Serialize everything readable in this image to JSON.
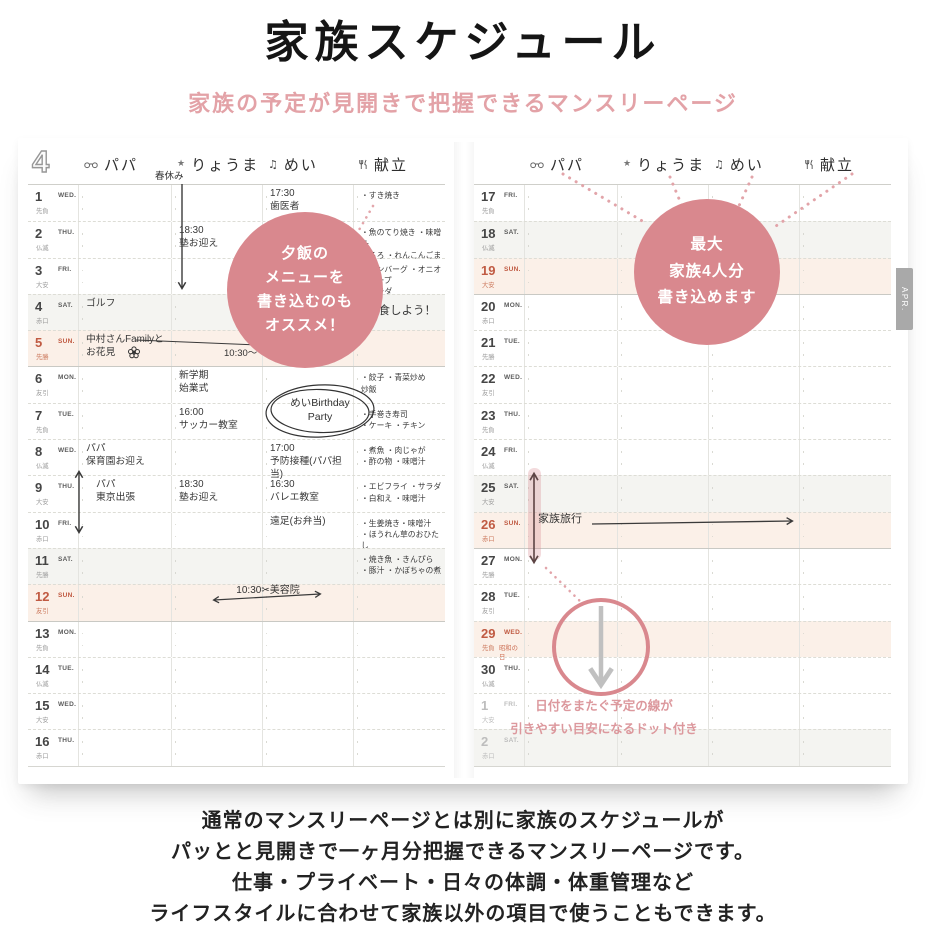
{
  "title": "家族スケジュール",
  "subtitle": "家族の予定が見開きで把握できるマンスリーページ",
  "side_tab": "APR.",
  "colors": {
    "accent_pink": "#e3a2a7",
    "circle_pink": "#d9888e",
    "date_red": "#c05a42"
  },
  "planner": {
    "month": "4",
    "columns": [
      {
        "icon": "glasses-icon",
        "label": "パパ"
      },
      {
        "icon": "star-icon",
        "label": "りょうま"
      },
      {
        "icon": "music-note-icon",
        "label": "めい"
      },
      {
        "icon": "cutlery-icon",
        "label": "献立"
      }
    ],
    "left_rows": [
      {
        "d": "1",
        "dow": "WED.",
        "rokuyo": "先負",
        "cls": "",
        "cells": {
          "mei": "17:30\n歯医者",
          "kondate": "・すき焼き"
        }
      },
      {
        "d": "2",
        "dow": "THU.",
        "rokuyo": "仏滅",
        "cls": "",
        "cells": {
          "ryoma": "18:30\n塾お迎え",
          "kondate": "・魚のてり焼き ・味噌汁\nとろろ ・れんこんごま和え"
        }
      },
      {
        "d": "3",
        "dow": "FRI.",
        "rokuyo": "大安",
        "cls": "",
        "cells": {
          "kondate": "・ハンバーグ ・オニオンスープ\n・サラダ"
        }
      },
      {
        "d": "4",
        "dow": "SAT.",
        "rokuyo": "赤口",
        "cls": "sat",
        "kcls": "big",
        "cells": {
          "papa": "ゴルフ",
          "kondate": "外食しよう！"
        }
      },
      {
        "d": "5",
        "dow": "SUN.",
        "rokuyo": "先勝",
        "cls": "sun",
        "cells": {
          "papa": "中村さんFamilyと\nお花見"
        }
      },
      {
        "d": "6",
        "dow": "MON.",
        "rokuyo": "友引",
        "cls": "wk",
        "cells": {
          "ryoma": "新学期\n始業式",
          "kondate": "・餃子 ・青菜炒め\n炒飯"
        }
      },
      {
        "d": "7",
        "dow": "TUE.",
        "rokuyo": "先負",
        "cls": "",
        "cells": {
          "ryoma": "16:00\nサッカー教室",
          "kondate": "・手巻き寿司\n・ケーキ ・チキン"
        }
      },
      {
        "d": "8",
        "dow": "WED.",
        "rokuyo": "仏滅",
        "cls": "",
        "cells": {
          "papa": "パパ\n保育園お迎え",
          "mei": "17:00\n予防接種(パパ担当)",
          "kondate": "・煮魚 ・肉じゃが\n・酢の物 ・味噌汁"
        }
      },
      {
        "d": "9",
        "dow": "THU.",
        "rokuyo": "大安",
        "cls": "",
        "indent": "papa",
        "cells": {
          "papa": "パパ\n東京出張",
          "ryoma": "18:30\n塾お迎え",
          "mei": "16:30\nバレエ教室",
          "kondate": "・エビフライ ・サラダ\n・白和え ・味噌汁"
        }
      },
      {
        "d": "10",
        "dow": "FRI.",
        "rokuyo": "赤口",
        "cls": "",
        "cells": {
          "mei": "遠足(お弁当)",
          "kondate": "・生姜焼き・味噌汁\n・ほうれん草のおひたし"
        }
      },
      {
        "d": "11",
        "dow": "SAT.",
        "rokuyo": "先勝",
        "cls": "sat",
        "cells": {
          "kondate": "・焼き魚 ・きんぴら\n・豚汁 ・かぼちゃの煮"
        }
      },
      {
        "d": "12",
        "dow": "SUN.",
        "rokuyo": "友引",
        "cls": "sun",
        "cells": {}
      },
      {
        "d": "13",
        "dow": "MON.",
        "rokuyo": "先負",
        "cls": "wk",
        "cells": {}
      },
      {
        "d": "14",
        "dow": "TUE.",
        "rokuyo": "仏滅",
        "cls": "",
        "cells": {}
      },
      {
        "d": "15",
        "dow": "WED.",
        "rokuyo": "大安",
        "cls": "",
        "cells": {}
      },
      {
        "d": "16",
        "dow": "THU.",
        "rokuyo": "赤口",
        "cls": "",
        "cells": {}
      }
    ],
    "right_rows": [
      {
        "d": "17",
        "dow": "FRI.",
        "rokuyo": "先負",
        "cls": "",
        "cells": {}
      },
      {
        "d": "18",
        "dow": "SAT.",
        "rokuyo": "仏滅",
        "cls": "sat",
        "cells": {}
      },
      {
        "d": "19",
        "dow": "SUN.",
        "rokuyo": "大安",
        "cls": "sun",
        "cells": {}
      },
      {
        "d": "20",
        "dow": "MON.",
        "rokuyo": "赤口",
        "cls": "wk",
        "cells": {}
      },
      {
        "d": "21",
        "dow": "TUE.",
        "rokuyo": "先勝",
        "cls": "",
        "cells": {}
      },
      {
        "d": "22",
        "dow": "WED.",
        "rokuyo": "友引",
        "cls": "",
        "cells": {}
      },
      {
        "d": "23",
        "dow": "THU.",
        "rokuyo": "先負",
        "cls": "",
        "cells": {}
      },
      {
        "d": "24",
        "dow": "FRI.",
        "rokuyo": "仏滅",
        "cls": "",
        "cells": {}
      },
      {
        "d": "25",
        "dow": "SAT.",
        "rokuyo": "大安",
        "cls": "sat",
        "cells": {}
      },
      {
        "d": "26",
        "dow": "SUN.",
        "rokuyo": "赤口",
        "cls": "sun",
        "cells": {}
      },
      {
        "d": "27",
        "dow": "MON.",
        "rokuyo": "先勝",
        "cls": "wk",
        "cells": {}
      },
      {
        "d": "28",
        "dow": "TUE.",
        "rokuyo": "友引",
        "cls": "",
        "cells": {}
      },
      {
        "d": "29",
        "dow": "WED.",
        "rokuyo": "先負",
        "cls": "hol",
        "holiday": "昭和の日",
        "cells": {}
      },
      {
        "d": "30",
        "dow": "THU.",
        "rokuyo": "仏滅",
        "cls": "",
        "cells": {}
      },
      {
        "d": "1",
        "dow": "FRI.",
        "rokuyo": "大安",
        "cls": "next",
        "cells": {}
      },
      {
        "d": "2",
        "dow": "SAT.",
        "rokuyo": "赤口",
        "cls": "next sat",
        "cells": {}
      }
    ]
  },
  "annotations": {
    "left_circle": "夕飯の\nメニューを\n書き込むのも\nオススメ！",
    "right_circle": "最大\n家族4人分\n書き込めます",
    "spring_break": "春休み",
    "hanami_time": "10:30〜",
    "salon": "10:30✂美容院",
    "heart_note": "めいBirthday\nParty",
    "family_trip": "家族旅行",
    "dot_note": "日付をまたぐ予定の線が\n引きやすい目安になるドット付き"
  },
  "description": [
    "通常のマンスリーページとは別に家族のスケジュールが",
    "パッとと見開きで一ヶ月分把握できるマンスリーページです。",
    "仕事・プライベート・日々の体調・体重管理など",
    "ライフスタイルに合わせて家族以外の項目で使うこともできます。"
  ]
}
